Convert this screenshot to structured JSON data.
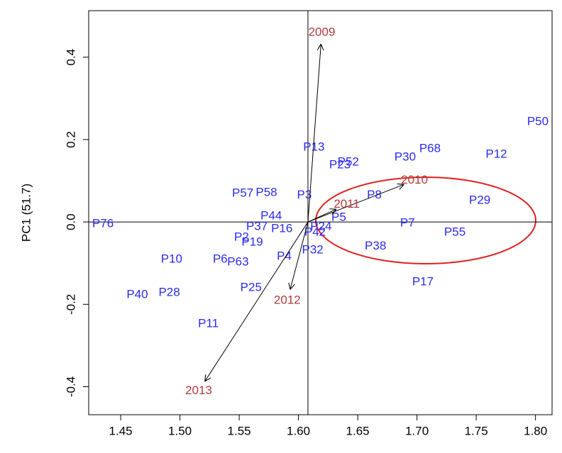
{
  "chart_data": {
    "type": "biplot",
    "y_label": "PC1 (51.7)",
    "xlim": [
      1.423,
      1.814
    ],
    "ylim": [
      -0.468,
      0.513
    ],
    "xticks": [
      1.45,
      {
        "value": 1.5,
        "label": "1.50"
      },
      1.55,
      {
        "value": 1.6,
        "label": "1.60"
      },
      1.65,
      {
        "value": 1.7,
        "label": "1.70"
      },
      1.75,
      {
        "value": 1.8,
        "label": "1.80"
      }
    ],
    "yticks": [
      -0.4,
      -0.2,
      {
        "value": 0,
        "label": "0.0"
      },
      0.2,
      0.4
    ],
    "reference_lines": {
      "x": 1.608,
      "y": 0
    },
    "point_color": "#2b2bf0",
    "arrow_label_color": "#b23a3a",
    "points": {
      "names": [
        "P50",
        "P68",
        "P12",
        "P30",
        "P13",
        "P52",
        "P23",
        "P8",
        "P29",
        "P57",
        "P58",
        "P3",
        "P76",
        "P44",
        "P7",
        "P55",
        "P5",
        "P24",
        "P37",
        "P16",
        "P42",
        "P32",
        "P2",
        "P19",
        "P38",
        "P10",
        "P6",
        "P63",
        "P4",
        "P17",
        "P25",
        "P40",
        "P28",
        "P11"
      ],
      "x": [
        1.802,
        1.711,
        1.767,
        1.69,
        1.613,
        1.642,
        1.635,
        1.664,
        1.753,
        1.553,
        1.573,
        1.605,
        1.435,
        1.577,
        1.692,
        1.732,
        1.634,
        1.619,
        1.565,
        1.586,
        1.614,
        1.612,
        1.552,
        1.561,
        1.665,
        1.493,
        1.534,
        1.549,
        1.588,
        1.705,
        1.56,
        1.464,
        1.491,
        1.524
      ],
      "y": [
        0.243,
        0.177,
        0.164,
        0.157,
        0.181,
        0.145,
        0.138,
        0.065,
        0.052,
        0.069,
        0.071,
        0.065,
        -0.005,
        0.014,
        -0.003,
        -0.026,
        0.01,
        -0.012,
        -0.012,
        -0.017,
        -0.026,
        -0.069,
        -0.038,
        -0.05,
        -0.059,
        -0.091,
        -0.091,
        -0.098,
        -0.084,
        -0.146,
        -0.16,
        -0.177,
        -0.172,
        -0.248
      ]
    },
    "arrows": [
      {
        "name": "2009",
        "x": 1.619,
        "y": 0.432
      },
      {
        "name": "2010",
        "x": 1.689,
        "y": 0.091
      },
      {
        "name": "2011",
        "x": 1.632,
        "y": 0.031
      },
      {
        "name": "2012",
        "x": 1.593,
        "y": -0.164
      },
      {
        "name": "2013",
        "x": 1.521,
        "y": -0.387
      }
    ]
  }
}
